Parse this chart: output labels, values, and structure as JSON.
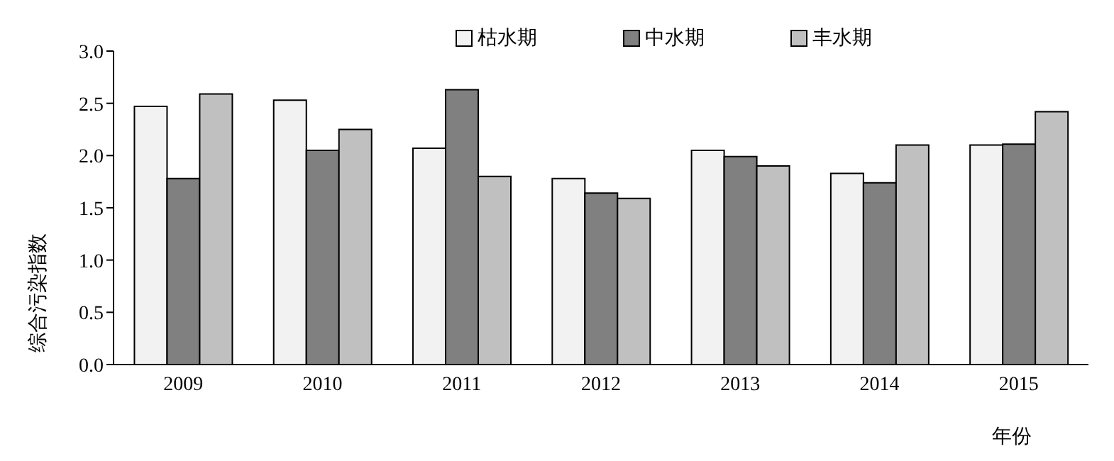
{
  "chart_data": {
    "type": "bar",
    "xlabel": "年份",
    "ylabel": "综合污染指数",
    "categories": [
      "2009",
      "2010",
      "2011",
      "2012",
      "2013",
      "2014",
      "2015"
    ],
    "series": [
      {
        "name": "枯水期",
        "color": "#f2f2f2",
        "values": [
          2.47,
          2.53,
          2.07,
          1.78,
          2.05,
          1.83,
          2.1
        ]
      },
      {
        "name": "中水期",
        "color": "#808080",
        "values": [
          1.78,
          2.05,
          2.63,
          1.64,
          1.99,
          1.74,
          2.11
        ]
      },
      {
        "name": "丰水期",
        "color": "#c0c0c0",
        "values": [
          2.59,
          2.25,
          1.8,
          1.59,
          1.9,
          2.1,
          2.42
        ]
      }
    ],
    "ylim": [
      0,
      3
    ],
    "yticks": [
      {
        "value": 0,
        "label": "0.0"
      },
      {
        "value": 0.5,
        "label": "0.5"
      },
      {
        "value": 1,
        "label": "1.0"
      },
      {
        "value": 1.5,
        "label": "1.5"
      },
      {
        "value": 2,
        "label": "2.0"
      },
      {
        "value": 2.5,
        "label": "2.5"
      },
      {
        "value": 3,
        "label": "3.0"
      }
    ],
    "grid": false,
    "legend": "top"
  }
}
